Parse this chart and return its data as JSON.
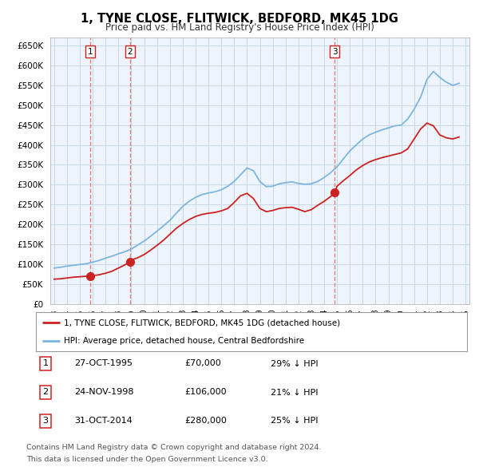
{
  "title": "1, TYNE CLOSE, FLITWICK, BEDFORD, MK45 1DG",
  "subtitle": "Price paid vs. HM Land Registry's House Price Index (HPI)",
  "legend_line1": "1, TYNE CLOSE, FLITWICK, BEDFORD, MK45 1DG (detached house)",
  "legend_line2": "HPI: Average price, detached house, Central Bedfordshire",
  "sales": [
    {
      "label": "1",
      "date": 1995.82,
      "price": 70000
    },
    {
      "label": "2",
      "date": 1998.9,
      "price": 106000
    },
    {
      "label": "3",
      "date": 2014.83,
      "price": 280000
    }
  ],
  "sale_annotations": [
    {
      "num": "1",
      "date_str": "27-OCT-1995",
      "price_str": "£70,000",
      "pct": "29% ↓ HPI"
    },
    {
      "num": "2",
      "date_str": "24-NOV-1998",
      "price_str": "£106,000",
      "pct": "21% ↓ HPI"
    },
    {
      "num": "3",
      "date_str": "31-OCT-2014",
      "price_str": "£280,000",
      "pct": "25% ↓ HPI"
    }
  ],
  "hpi_color": "#7eb5e0",
  "sale_color": "#cc2222",
  "vline_color": "#e08080",
  "grid_color": "#c8d8e8",
  "bg_color": "#eef4fb",
  "footnote1": "Contains HM Land Registry data © Crown copyright and database right 2024.",
  "footnote2": "This data is licensed under the Open Government Licence v3.0.",
  "yticks": [
    0,
    50000,
    100000,
    150000,
    200000,
    250000,
    300000,
    350000,
    400000,
    450000,
    500000,
    550000,
    600000,
    650000
  ],
  "hpi_years": [
    1993,
    1993.5,
    1994,
    1994.5,
    1995,
    1995.5,
    1996,
    1996.5,
    1997,
    1997.5,
    1998,
    1998.5,
    1999,
    1999.5,
    2000,
    2000.5,
    2001,
    2001.5,
    2002,
    2002.5,
    2003,
    2003.5,
    2004,
    2004.5,
    2005,
    2005.5,
    2006,
    2006.5,
    2007,
    2007.5,
    2008,
    2008.5,
    2009,
    2009.5,
    2010,
    2010.5,
    2011,
    2011.5,
    2012,
    2012.5,
    2013,
    2013.5,
    2014,
    2014.5,
    2015,
    2015.5,
    2016,
    2016.5,
    2017,
    2017.5,
    2018,
    2018.5,
    2019,
    2019.5,
    2020,
    2020.5,
    2021,
    2021.5,
    2022,
    2022.5,
    2023,
    2023.5,
    2024,
    2024.5
  ],
  "hpi_values": [
    90000,
    92000,
    95000,
    97000,
    99000,
    101000,
    105000,
    109000,
    115000,
    120000,
    126000,
    131000,
    138000,
    148000,
    158000,
    170000,
    183000,
    196000,
    210000,
    228000,
    245000,
    258000,
    268000,
    275000,
    279000,
    282000,
    287000,
    296000,
    308000,
    325000,
    342000,
    335000,
    308000,
    295000,
    296000,
    302000,
    305000,
    307000,
    303000,
    301000,
    302000,
    308000,
    318000,
    330000,
    345000,
    365000,
    385000,
    400000,
    415000,
    425000,
    432000,
    438000,
    443000,
    448000,
    450000,
    465000,
    490000,
    520000,
    565000,
    585000,
    570000,
    558000,
    550000,
    555000
  ],
  "red_years": [
    1993,
    1993.5,
    1994,
    1994.5,
    1995,
    1995.5,
    1995.82,
    1996,
    1996.5,
    1997,
    1997.5,
    1998,
    1998.5,
    1998.9,
    1999,
    1999.5,
    2000,
    2000.5,
    2001,
    2001.5,
    2002,
    2002.5,
    2003,
    2003.5,
    2004,
    2004.5,
    2005,
    2005.5,
    2006,
    2006.5,
    2007,
    2007.5,
    2008,
    2008.5,
    2009,
    2009.5,
    2010,
    2010.5,
    2011,
    2011.5,
    2012,
    2012.5,
    2013,
    2013.5,
    2014,
    2014.5,
    2014.83,
    2015,
    2015.5,
    2016,
    2016.5,
    2017,
    2017.5,
    2018,
    2018.5,
    2019,
    2019.5,
    2020,
    2020.5,
    2021,
    2021.5,
    2022,
    2022.5,
    2023,
    2023.5,
    2024,
    2024.5
  ],
  "red_values": [
    62000,
    63000,
    65000,
    67000,
    68000,
    69500,
    70000,
    71000,
    73000,
    77000,
    82000,
    90000,
    98000,
    106000,
    110000,
    116000,
    124000,
    135000,
    147000,
    160000,
    175000,
    190000,
    202000,
    212000,
    220000,
    225000,
    228000,
    230000,
    234000,
    240000,
    255000,
    272000,
    278000,
    265000,
    240000,
    232000,
    235000,
    240000,
    242000,
    243000,
    238000,
    232000,
    237000,
    248000,
    258000,
    270000,
    280000,
    296000,
    310000,
    323000,
    337000,
    348000,
    357000,
    363000,
    368000,
    372000,
    376000,
    380000,
    390000,
    415000,
    440000,
    455000,
    448000,
    425000,
    418000,
    415000,
    420000
  ]
}
